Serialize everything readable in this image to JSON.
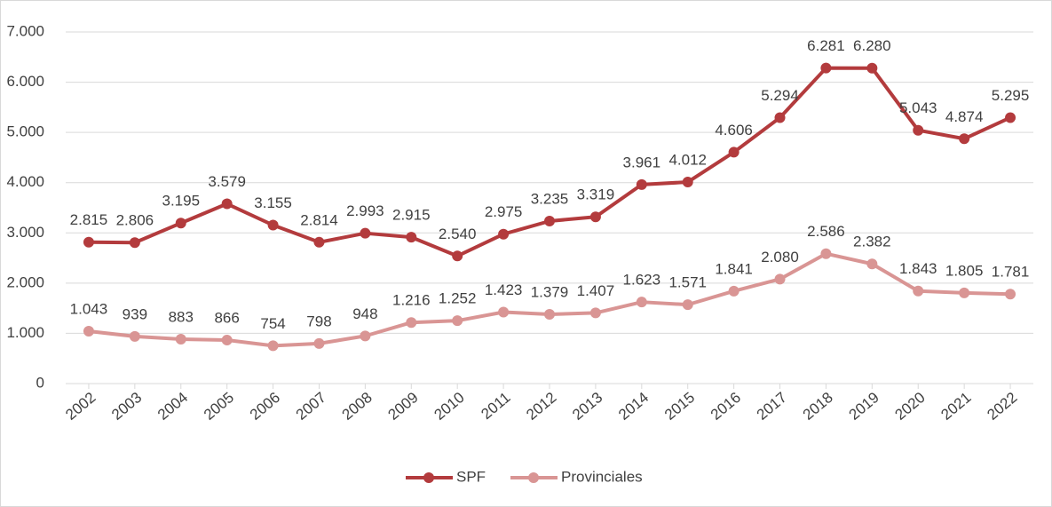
{
  "chart_data": {
    "type": "line",
    "categories": [
      "2002",
      "2003",
      "2004",
      "2005",
      "2006",
      "2007",
      "2008",
      "2009",
      "2010",
      "2011",
      "2012",
      "2013",
      "2014",
      "2015",
      "2016",
      "2017",
      "2018",
      "2019",
      "2020",
      "2021",
      "2022"
    ],
    "series": [
      {
        "name": "SPF",
        "color": "#b33b3d",
        "values": [
          2815,
          2806,
          3195,
          3579,
          3155,
          2814,
          2993,
          2915,
          2540,
          2975,
          3235,
          3319,
          3961,
          4012,
          4606,
          5294,
          6281,
          6280,
          5043,
          4874,
          5295
        ],
        "value_labels": [
          "2.815",
          "2.806",
          "3.195",
          "3.579",
          "3.155",
          "2.814",
          "2.993",
          "2.915",
          "2.540",
          "2.975",
          "3.235",
          "3.319",
          "3.961",
          "4.012",
          "4.606",
          "5.294",
          "6.281",
          "6.280",
          "5.043",
          "4.874",
          "5.295"
        ]
      },
      {
        "name": "Provinciales",
        "color": "#d99594",
        "values": [
          1043,
          939,
          883,
          866,
          754,
          798,
          948,
          1216,
          1252,
          1423,
          1379,
          1407,
          1623,
          1571,
          1841,
          2080,
          2586,
          2382,
          1843,
          1805,
          1781
        ],
        "value_labels": [
          "1.043",
          "939",
          "883",
          "866",
          "754",
          "798",
          "948",
          "1.216",
          "1.252",
          "1.423",
          "1.379",
          "1.407",
          "1.623",
          "1.571",
          "1.841",
          "2.080",
          "2.586",
          "2.382",
          "1.843",
          "1.805",
          "1.781"
        ]
      }
    ],
    "ylim": [
      0,
      7000
    ],
    "yticks": [
      0,
      {
        "value": 1000,
        "label": "1.000"
      },
      {
        "value": 2000,
        "label": "2.000"
      },
      {
        "value": 3000,
        "label": "3.000"
      },
      {
        "value": 4000,
        "label": "4.000"
      },
      {
        "value": 5000,
        "label": "5.000"
      },
      {
        "value": 6000,
        "label": "6.000"
      },
      {
        "value": 7000,
        "label": "7.000"
      }
    ],
    "grid": true,
    "legend": "bottom"
  }
}
